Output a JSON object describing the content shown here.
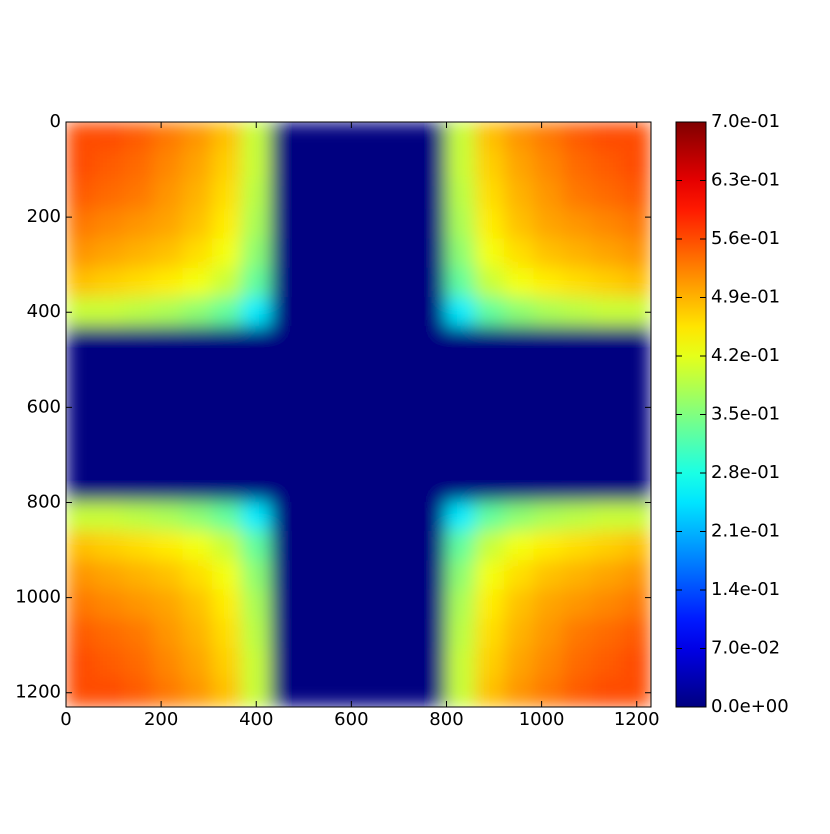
{
  "chart_data": {
    "type": "heatmap",
    "colormap": "jet",
    "xlim": [
      0,
      1230
    ],
    "ylim": [
      1230,
      0
    ],
    "xticks": [
      0,
      200,
      400,
      600,
      800,
      1000,
      1200
    ],
    "yticks": [
      0,
      200,
      400,
      600,
      800,
      1000,
      1200
    ],
    "clim": [
      0,
      0.7
    ],
    "cticks": [
      {
        "value": 0,
        "label": "0.0e+00"
      },
      {
        "value": 0.07,
        "label": "7.0e-02"
      },
      {
        "value": 0.14,
        "label": "1.4e-01"
      },
      {
        "value": 0.21,
        "label": "2.1e-01"
      },
      {
        "value": 0.28,
        "label": "2.8e-01"
      },
      {
        "value": 0.35,
        "label": "3.5e-01"
      },
      {
        "value": 0.42,
        "label": "4.2e-01"
      },
      {
        "value": 0.49,
        "label": "4.9e-01"
      },
      {
        "value": 0.56,
        "label": "5.6e-01"
      },
      {
        "value": 0.63,
        "label": "6.3e-01"
      },
      {
        "value": 0.7,
        "label": "7.0e-01"
      }
    ],
    "z": [
      [
        0.56,
        0.56,
        0.55,
        0.53,
        0.51,
        0.48,
        0.4,
        0,
        0,
        0,
        0,
        0,
        0,
        0.4,
        0.48,
        0.51,
        0.53,
        0.55,
        0.56,
        0.56
      ],
      [
        0.56,
        0.55,
        0.54,
        0.52,
        0.5,
        0.47,
        0.4,
        0,
        0,
        0,
        0,
        0,
        0,
        0.4,
        0.47,
        0.5,
        0.52,
        0.54,
        0.55,
        0.56
      ],
      [
        0.55,
        0.54,
        0.53,
        0.51,
        0.49,
        0.46,
        0.39,
        0,
        0,
        0,
        0,
        0,
        0,
        0.39,
        0.46,
        0.49,
        0.51,
        0.53,
        0.54,
        0.55
      ],
      [
        0.53,
        0.52,
        0.51,
        0.5,
        0.48,
        0.45,
        0.38,
        0,
        0,
        0,
        0,
        0,
        0,
        0.38,
        0.45,
        0.48,
        0.5,
        0.51,
        0.52,
        0.53
      ],
      [
        0.51,
        0.5,
        0.49,
        0.48,
        0.46,
        0.43,
        0.36,
        0,
        0,
        0,
        0,
        0,
        0,
        0.36,
        0.43,
        0.46,
        0.48,
        0.49,
        0.5,
        0.51
      ],
      [
        0.48,
        0.47,
        0.46,
        0.45,
        0.43,
        0.4,
        0.33,
        0,
        0,
        0,
        0,
        0,
        0,
        0.33,
        0.4,
        0.43,
        0.45,
        0.46,
        0.47,
        0.48
      ],
      [
        0.4,
        0.4,
        0.39,
        0.38,
        0.36,
        0.33,
        0.25,
        0,
        0,
        0,
        0,
        0,
        0,
        0.25,
        0.33,
        0.36,
        0.38,
        0.39,
        0.4,
        0.4
      ],
      [
        0,
        0,
        0,
        0,
        0,
        0,
        0,
        0,
        0,
        0,
        0,
        0,
        0,
        0,
        0,
        0,
        0,
        0,
        0,
        0
      ],
      [
        0,
        0,
        0,
        0,
        0,
        0,
        0,
        0,
        0,
        0,
        0,
        0,
        0,
        0,
        0,
        0,
        0,
        0,
        0,
        0
      ],
      [
        0,
        0,
        0,
        0,
        0,
        0,
        0,
        0,
        0,
        0,
        0,
        0,
        0,
        0,
        0,
        0,
        0,
        0,
        0,
        0
      ],
      [
        0,
        0,
        0,
        0,
        0,
        0,
        0,
        0,
        0,
        0,
        0,
        0,
        0,
        0,
        0,
        0,
        0,
        0,
        0,
        0
      ],
      [
        0,
        0,
        0,
        0,
        0,
        0,
        0,
        0,
        0,
        0,
        0,
        0,
        0,
        0,
        0,
        0,
        0,
        0,
        0,
        0
      ],
      [
        0,
        0,
        0,
        0,
        0,
        0,
        0,
        0,
        0,
        0,
        0,
        0,
        0,
        0,
        0,
        0,
        0,
        0,
        0,
        0
      ],
      [
        0.4,
        0.4,
        0.39,
        0.38,
        0.36,
        0.33,
        0.25,
        0,
        0,
        0,
        0,
        0,
        0,
        0.25,
        0.33,
        0.36,
        0.38,
        0.39,
        0.4,
        0.4
      ],
      [
        0.48,
        0.47,
        0.46,
        0.45,
        0.43,
        0.4,
        0.33,
        0,
        0,
        0,
        0,
        0,
        0,
        0.33,
        0.4,
        0.43,
        0.45,
        0.46,
        0.47,
        0.48
      ],
      [
        0.51,
        0.5,
        0.49,
        0.48,
        0.46,
        0.43,
        0.36,
        0,
        0,
        0,
        0,
        0,
        0,
        0.36,
        0.43,
        0.46,
        0.48,
        0.49,
        0.5,
        0.51
      ],
      [
        0.53,
        0.52,
        0.51,
        0.5,
        0.48,
        0.45,
        0.38,
        0,
        0,
        0,
        0,
        0,
        0,
        0.38,
        0.45,
        0.48,
        0.5,
        0.51,
        0.52,
        0.53
      ],
      [
        0.55,
        0.54,
        0.53,
        0.51,
        0.49,
        0.46,
        0.39,
        0,
        0,
        0,
        0,
        0,
        0,
        0.39,
        0.46,
        0.49,
        0.51,
        0.53,
        0.54,
        0.55
      ],
      [
        0.56,
        0.55,
        0.54,
        0.52,
        0.5,
        0.47,
        0.4,
        0,
        0,
        0,
        0,
        0,
        0,
        0.4,
        0.47,
        0.5,
        0.52,
        0.54,
        0.55,
        0.56
      ],
      [
        0.56,
        0.56,
        0.55,
        0.53,
        0.51,
        0.48,
        0.4,
        0,
        0,
        0,
        0,
        0,
        0,
        0.4,
        0.48,
        0.51,
        0.53,
        0.55,
        0.56,
        0.56
      ]
    ]
  }
}
